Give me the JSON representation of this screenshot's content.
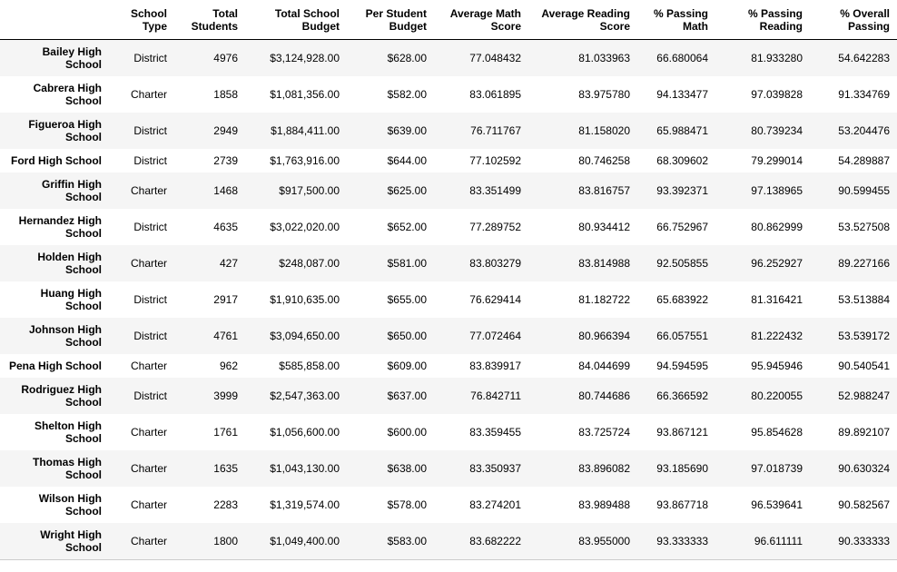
{
  "chart_data": {
    "type": "table",
    "description": "Per-school summary table (pandas DataFrame style) with alternating row stripes",
    "columns": [
      {
        "label": "School Type",
        "lines": [
          "School",
          "Type"
        ]
      },
      {
        "label": "Total Students",
        "lines": [
          "Total",
          "Students"
        ]
      },
      {
        "label": "Total School Budget",
        "lines": [
          "Total School",
          "Budget"
        ]
      },
      {
        "label": "Per Student Budget",
        "lines": [
          "Per Student",
          "Budget"
        ]
      },
      {
        "label": "Average Math Score",
        "lines": [
          "Average Math",
          "Score"
        ]
      },
      {
        "label": "Average Reading Score",
        "lines": [
          "Average Reading",
          "Score"
        ]
      },
      {
        "label": "% Passing Math",
        "lines": [
          "% Passing",
          "Math"
        ]
      },
      {
        "label": "% Passing Reading",
        "lines": [
          "% Passing",
          "Reading"
        ]
      },
      {
        "label": "% Overall Passing",
        "lines": [
          "% Overall",
          "Passing"
        ]
      }
    ],
    "rows": [
      {
        "name": "Bailey High School",
        "name_lines": [
          "Bailey High",
          "School"
        ],
        "values": [
          "District",
          "4976",
          "$3,124,928.00",
          "$628.00",
          "77.048432",
          "81.033963",
          "66.680064",
          "81.933280",
          "54.642283"
        ]
      },
      {
        "name": "Cabrera High School",
        "name_lines": [
          "Cabrera High",
          "School"
        ],
        "values": [
          "Charter",
          "1858",
          "$1,081,356.00",
          "$582.00",
          "83.061895",
          "83.975780",
          "94.133477",
          "97.039828",
          "91.334769"
        ]
      },
      {
        "name": "Figueroa High School",
        "name_lines": [
          "Figueroa High",
          "School"
        ],
        "values": [
          "District",
          "2949",
          "$1,884,411.00",
          "$639.00",
          "76.711767",
          "81.158020",
          "65.988471",
          "80.739234",
          "53.204476"
        ]
      },
      {
        "name": "Ford High School",
        "name_lines": [
          "Ford High School"
        ],
        "values": [
          "District",
          "2739",
          "$1,763,916.00",
          "$644.00",
          "77.102592",
          "80.746258",
          "68.309602",
          "79.299014",
          "54.289887"
        ]
      },
      {
        "name": "Griffin High School",
        "name_lines": [
          "Griffin High",
          "School"
        ],
        "values": [
          "Charter",
          "1468",
          "$917,500.00",
          "$625.00",
          "83.351499",
          "83.816757",
          "93.392371",
          "97.138965",
          "90.599455"
        ]
      },
      {
        "name": "Hernandez High School",
        "name_lines": [
          "Hernandez High",
          "School"
        ],
        "values": [
          "District",
          "4635",
          "$3,022,020.00",
          "$652.00",
          "77.289752",
          "80.934412",
          "66.752967",
          "80.862999",
          "53.527508"
        ]
      },
      {
        "name": "Holden High School",
        "name_lines": [
          "Holden High",
          "School"
        ],
        "values": [
          "Charter",
          "427",
          "$248,087.00",
          "$581.00",
          "83.803279",
          "83.814988",
          "92.505855",
          "96.252927",
          "89.227166"
        ]
      },
      {
        "name": "Huang High School",
        "name_lines": [
          "Huang High",
          "School"
        ],
        "values": [
          "District",
          "2917",
          "$1,910,635.00",
          "$655.00",
          "76.629414",
          "81.182722",
          "65.683922",
          "81.316421",
          "53.513884"
        ]
      },
      {
        "name": "Johnson High School",
        "name_lines": [
          "Johnson High",
          "School"
        ],
        "values": [
          "District",
          "4761",
          "$3,094,650.00",
          "$650.00",
          "77.072464",
          "80.966394",
          "66.057551",
          "81.222432",
          "53.539172"
        ]
      },
      {
        "name": "Pena High School",
        "name_lines": [
          "Pena High School"
        ],
        "values": [
          "Charter",
          "962",
          "$585,858.00",
          "$609.00",
          "83.839917",
          "84.044699",
          "94.594595",
          "95.945946",
          "90.540541"
        ]
      },
      {
        "name": "Rodriguez High School",
        "name_lines": [
          "Rodriguez High",
          "School"
        ],
        "values": [
          "District",
          "3999",
          "$2,547,363.00",
          "$637.00",
          "76.842711",
          "80.744686",
          "66.366592",
          "80.220055",
          "52.988247"
        ]
      },
      {
        "name": "Shelton High School",
        "name_lines": [
          "Shelton High",
          "School"
        ],
        "values": [
          "Charter",
          "1761",
          "$1,056,600.00",
          "$600.00",
          "83.359455",
          "83.725724",
          "93.867121",
          "95.854628",
          "89.892107"
        ]
      },
      {
        "name": "Thomas High School",
        "name_lines": [
          "Thomas High",
          "School"
        ],
        "values": [
          "Charter",
          "1635",
          "$1,043,130.00",
          "$638.00",
          "83.350937",
          "83.896082",
          "93.185690",
          "97.018739",
          "90.630324"
        ]
      },
      {
        "name": "Wilson High School",
        "name_lines": [
          "Wilson High",
          "School"
        ],
        "values": [
          "Charter",
          "2283",
          "$1,319,574.00",
          "$578.00",
          "83.274201",
          "83.989488",
          "93.867718",
          "96.539641",
          "90.582567"
        ]
      },
      {
        "name": "Wright High School",
        "name_lines": [
          "Wright High",
          "School"
        ],
        "values": [
          "Charter",
          "1800",
          "$1,049,400.00",
          "$583.00",
          "83.682222",
          "83.955000",
          "93.333333",
          "96.611111",
          "90.333333"
        ]
      }
    ],
    "layout": {
      "stripe_color": "#f5f5f5",
      "header_border_color": "#000000",
      "bottom_border_color": "#cccccc",
      "text_color": "#000000",
      "alignment": "right",
      "striped_rows": "odd"
    }
  }
}
